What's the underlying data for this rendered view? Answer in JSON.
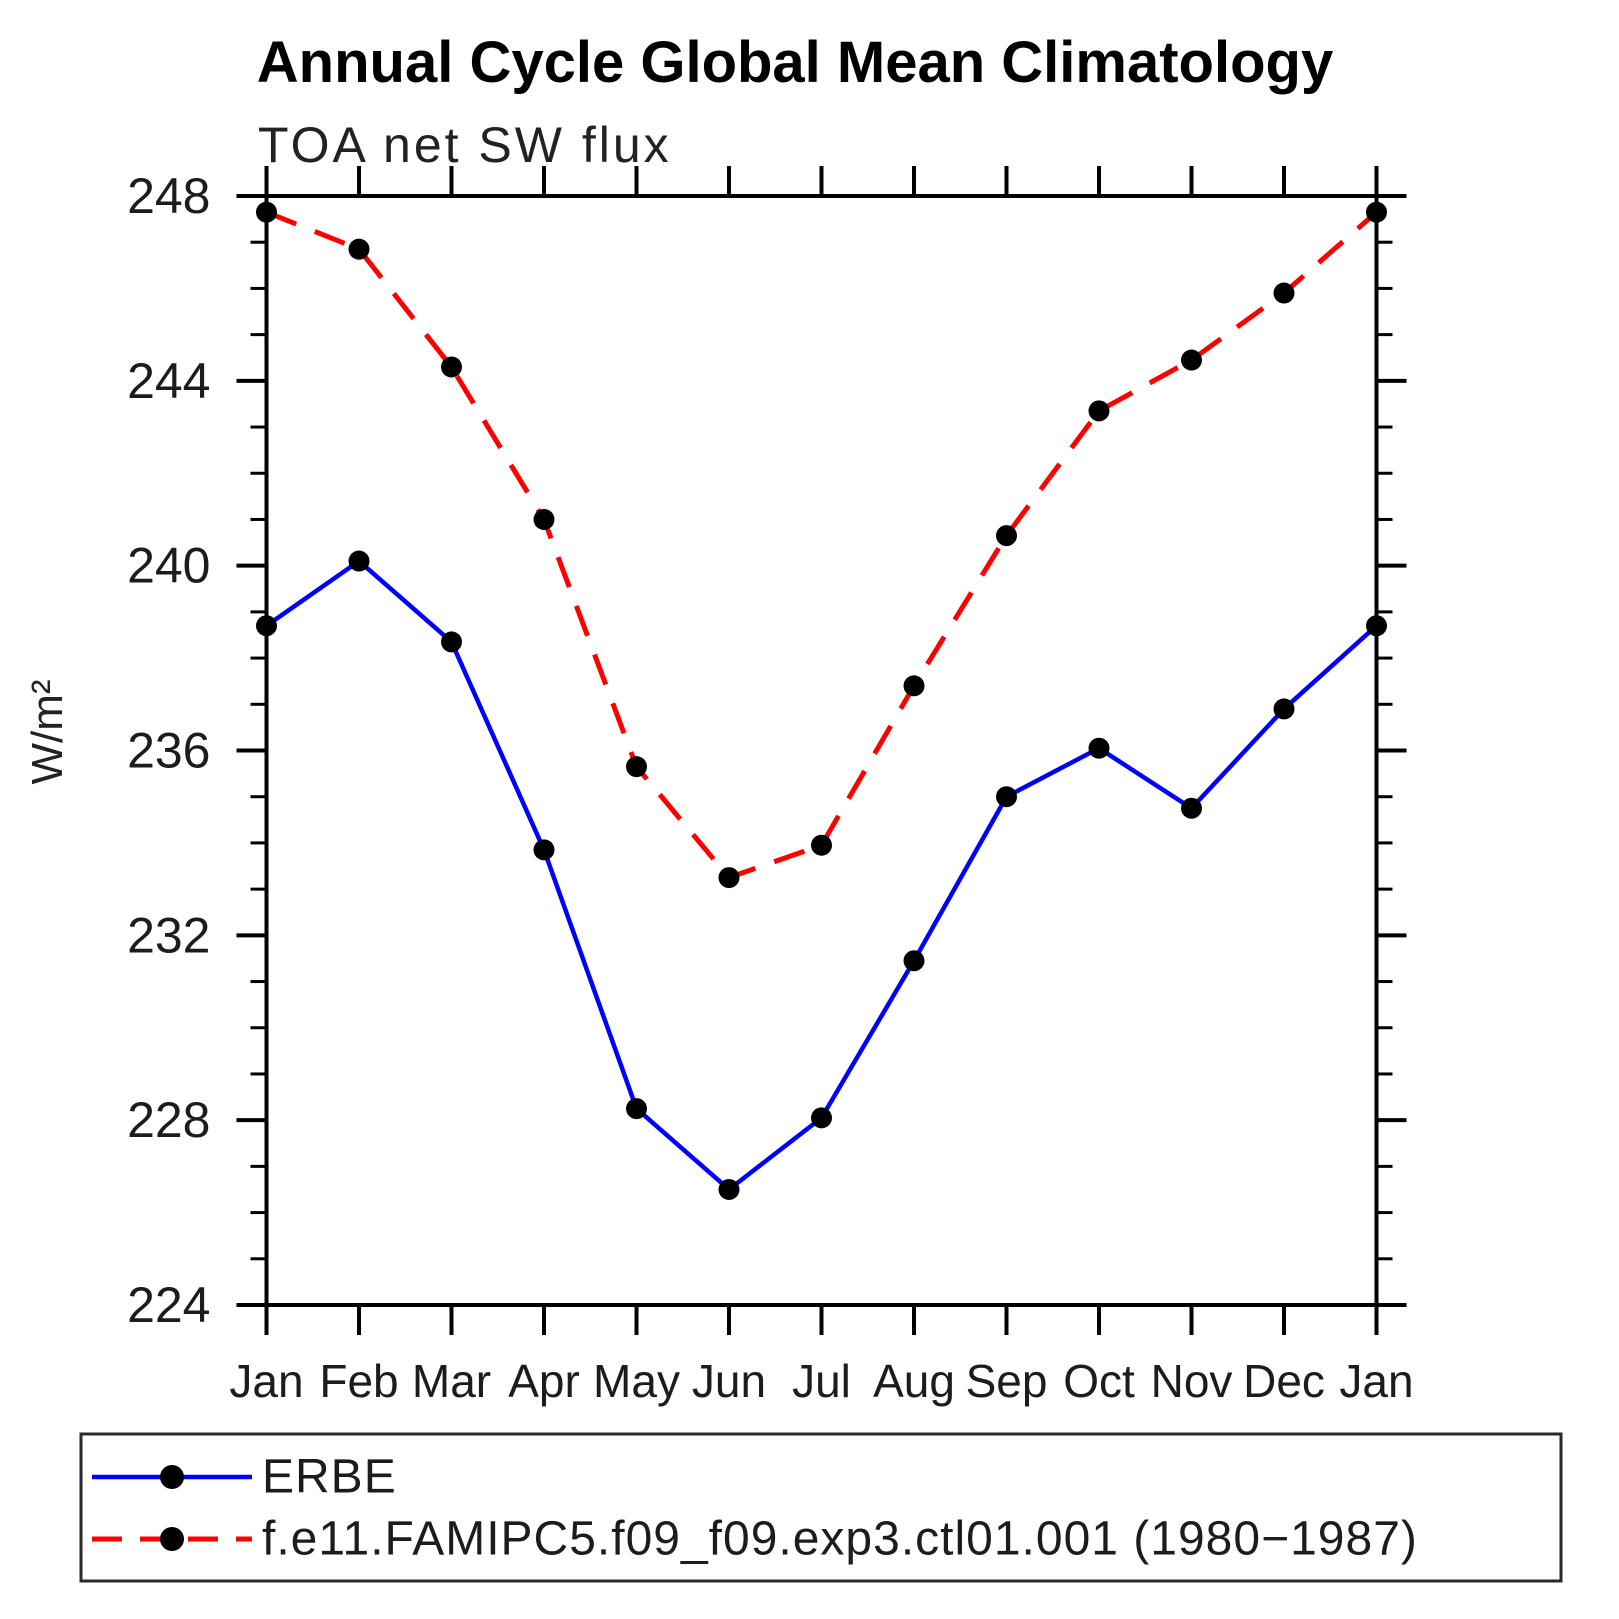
{
  "chart_data": {
    "type": "line",
    "title": "Annual Cycle Global Mean Climatology",
    "subtitle": "TOA net SW flux",
    "ylabel": "W/m²",
    "x_categories": [
      "Jan",
      "Feb",
      "Mar",
      "Apr",
      "May",
      "Jun",
      "Jul",
      "Aug",
      "Sep",
      "Oct",
      "Nov",
      "Dec",
      "Jan"
    ],
    "ylim": [
      224,
      248
    ],
    "y_major_ticks": [
      224,
      228,
      232,
      236,
      240,
      244,
      248
    ],
    "y_minor_tick_step": 1,
    "grid": false,
    "legend_position": "bottom",
    "axis_color": "#000000",
    "marker_color": "#000000",
    "series": [
      {
        "name": "ERBE",
        "color": "#0000ff",
        "style": "solid",
        "marker": "black-dot",
        "values": [
          238.7,
          240.1,
          238.35,
          233.85,
          228.25,
          226.5,
          228.05,
          231.45,
          235.0,
          236.05,
          234.75,
          236.9,
          238.7
        ]
      },
      {
        "name": "f.e11.FAMIPC5.f09_f09.exp3.ctl01.001 (1980−1987)",
        "color": "#ff0000",
        "style": "dashed",
        "marker": "black-dot",
        "values": [
          247.65,
          246.85,
          244.3,
          241.0,
          235.65,
          233.25,
          233.95,
          237.4,
          240.65,
          243.35,
          244.45,
          245.9,
          247.65
        ]
      }
    ]
  }
}
